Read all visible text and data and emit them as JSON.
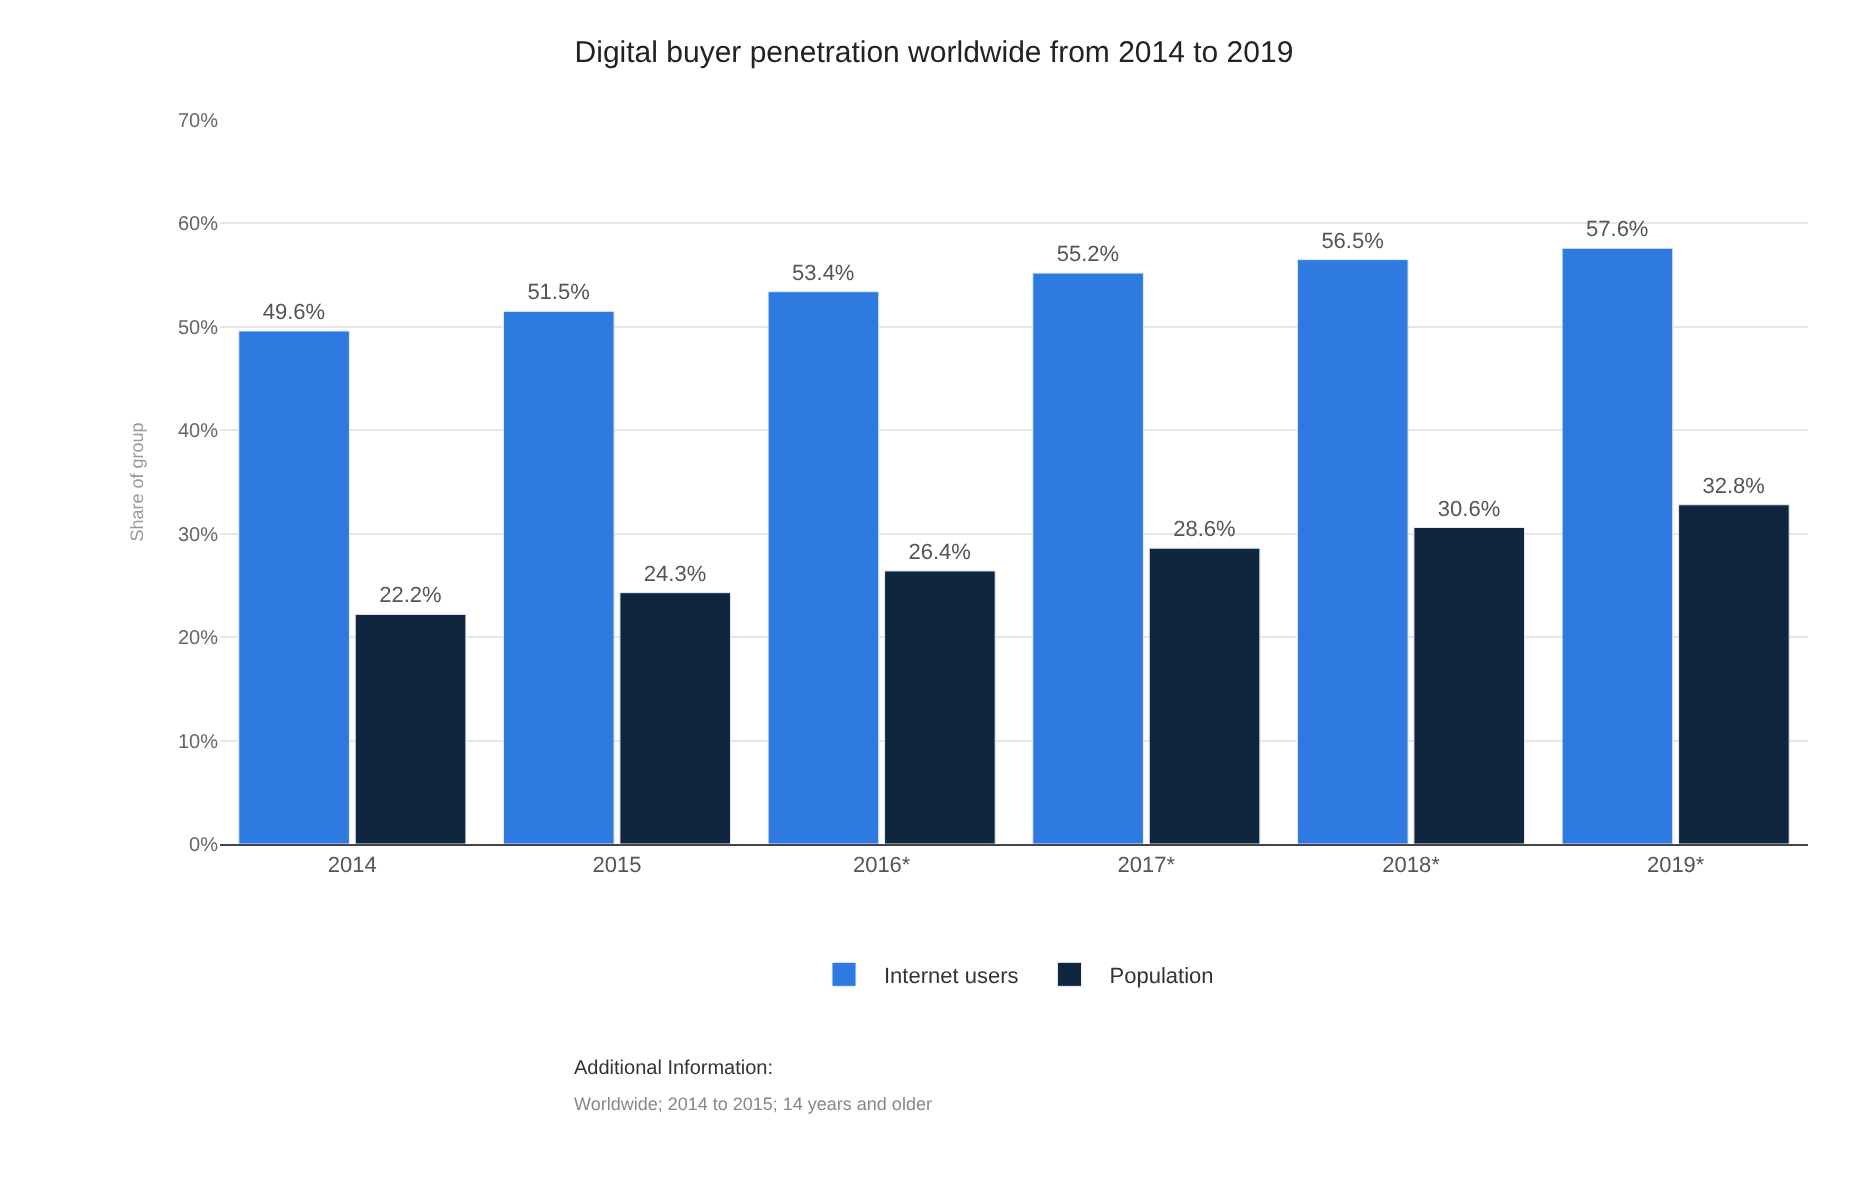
{
  "chart_data": {
    "type": "bar",
    "title": "Digital buyer penetration worldwide from 2014 to 2019",
    "ylabel": "Share of group",
    "categories": [
      "2014",
      "2015",
      "2016*",
      "2017*",
      "2018*",
      "2019*"
    ],
    "series": [
      {
        "name": "Internet users",
        "color": "#2f7ae0",
        "values": [
          49.6,
          51.5,
          53.4,
          55.2,
          56.5,
          57.6
        ],
        "value_labels": [
          "49.6%",
          "51.5%",
          "53.4%",
          "55.2%",
          "56.5%",
          "57.6%"
        ]
      },
      {
        "name": "Population",
        "color": "#10263f",
        "values": [
          22.2,
          24.3,
          26.4,
          28.6,
          30.6,
          32.8
        ],
        "value_labels": [
          "22.2%",
          "24.3%",
          "26.4%",
          "28.6%",
          "30.6%",
          "32.8%"
        ]
      }
    ],
    "ylim": [
      0,
      70
    ],
    "yticks": [
      {
        "value": 0,
        "label": "0%"
      },
      {
        "value": 10,
        "label": "10%"
      },
      {
        "value": 20,
        "label": "20%"
      },
      {
        "value": 30,
        "label": "30%"
      },
      {
        "value": 40,
        "label": "40%"
      },
      {
        "value": 50,
        "label": "50%"
      },
      {
        "value": 60,
        "label": "60%"
      },
      {
        "value": 70,
        "label": "70%"
      }
    ],
    "grid": "y",
    "legend": "bottom",
    "annotations": [
      "Additional Information:",
      "Worldwide; 2014 to 2015; 14 years and older"
    ]
  }
}
